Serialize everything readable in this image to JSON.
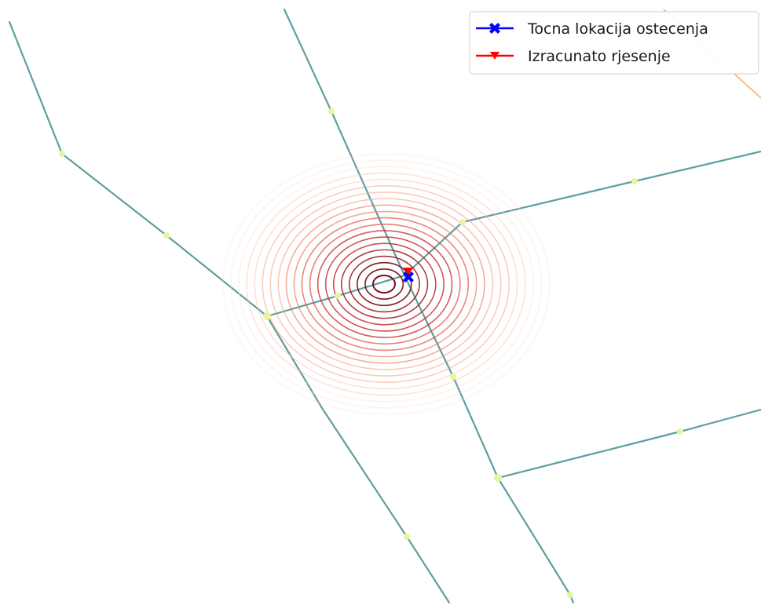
{
  "legend": {
    "items": [
      {
        "label": "Tocna lokacija ostecenja",
        "color": "#0000ff",
        "marker": "filled-x-marker"
      },
      {
        "label": "Izracunato rjesenje",
        "color": "#ff0000",
        "marker": "down-triangle-marker"
      }
    ]
  },
  "colors": {
    "pipe": "#5f9ea0",
    "pipe_secondary": "#f4c28a",
    "node": "#e8f5a0",
    "contour_ramp": [
      "#fbe3d8",
      "#fcc3ad",
      "#f9a184",
      "#f07a5c",
      "#e0503e",
      "#c4282c",
      "#a21f24",
      "#7a1017"
    ]
  },
  "contour_levels": 20
}
